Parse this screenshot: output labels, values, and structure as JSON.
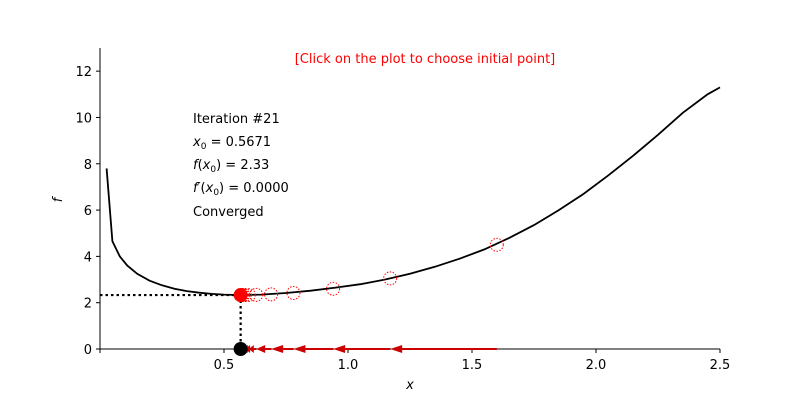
{
  "chart_data": {
    "type": "line",
    "title": "",
    "instruction": "[Click on the plot to choose initial point]",
    "xlabel": "x",
    "ylabel": "f",
    "xlim": [
      0,
      2.5
    ],
    "ylim": [
      0,
      13
    ],
    "xticks": [
      "0.5",
      "1.0",
      "1.5",
      "2.0",
      "2.5"
    ],
    "yticks": [
      "0",
      "2",
      "4",
      "6",
      "8",
      "10",
      "12"
    ],
    "curve": {
      "x": [
        0.0267,
        0.05,
        0.08,
        0.11,
        0.15,
        0.2,
        0.25,
        0.3,
        0.35,
        0.4,
        0.45,
        0.5,
        0.5671,
        0.65,
        0.75,
        0.85,
        0.95,
        1.05,
        1.15,
        1.25,
        1.35,
        1.45,
        1.55,
        1.65,
        1.75,
        1.85,
        1.95,
        2.05,
        2.15,
        2.25,
        2.35,
        2.45,
        2.5
      ],
      "y": [
        7.8,
        4.65,
        4.0,
        3.6,
        3.25,
        2.95,
        2.75,
        2.6,
        2.5,
        2.43,
        2.38,
        2.35,
        2.33,
        2.35,
        2.42,
        2.52,
        2.65,
        2.8,
        3.0,
        3.25,
        3.55,
        3.9,
        4.3,
        4.8,
        5.35,
        6.0,
        6.7,
        7.5,
        8.35,
        9.25,
        10.2,
        11.0,
        11.3
      ]
    },
    "iterates": {
      "x": [
        1.6,
        1.17,
        0.94,
        0.78,
        0.69,
        0.63,
        0.6,
        0.585,
        0.576,
        0.5715,
        0.5671
      ],
      "y": [
        4.5,
        3.05,
        2.6,
        2.42,
        2.36,
        2.34,
        2.33,
        2.33,
        2.33,
        2.33,
        2.33
      ]
    },
    "current": {
      "x": 0.5671,
      "y": 2.33
    },
    "info": {
      "iteration": "Iteration #21",
      "x0_var": "x",
      "x0_sub": "0",
      "x0_value": " = 0.5671",
      "f_label": "f",
      "f_value": " = 2.33",
      "fp_label": "f′",
      "fp_value": " = 0.0000",
      "status": "Converged"
    },
    "colors": {
      "curve": "#000000",
      "iterate": "#ff0000",
      "arrow": "#cc0000",
      "point": "#ff0000",
      "root": "#000000",
      "instruction": "#ff0000"
    },
    "grid": false,
    "legend": "none"
  }
}
